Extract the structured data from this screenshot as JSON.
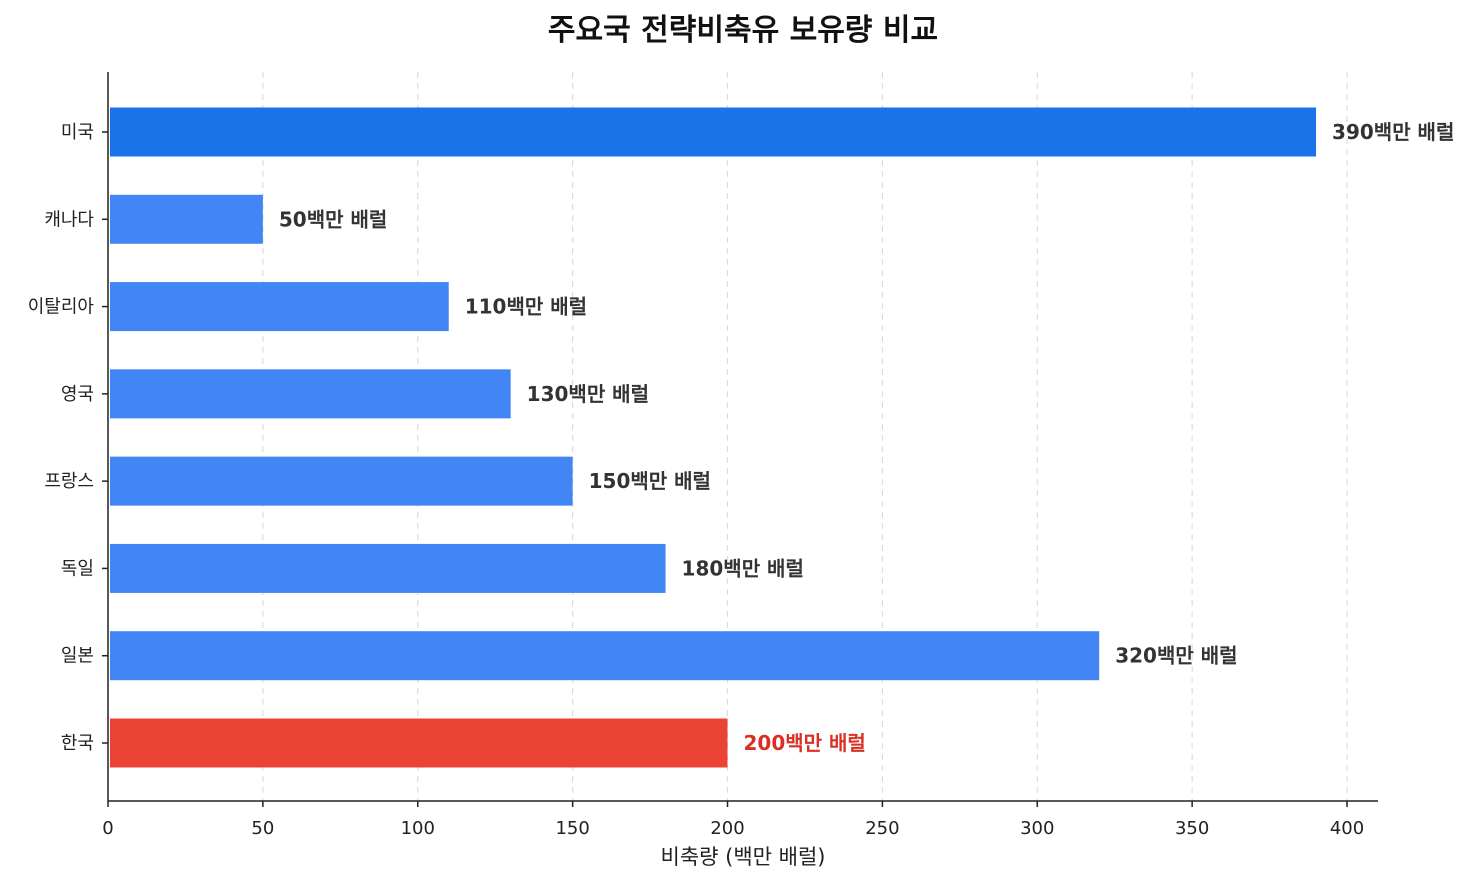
{
  "chart_data": {
    "type": "bar",
    "orientation": "horizontal",
    "title": "주요국 전략비축유 보유량 비교",
    "xlabel": "비축량 (백만 배럴)",
    "ylabel": "",
    "xlim": [
      0,
      410
    ],
    "xticks": [
      0,
      50,
      100,
      150,
      200,
      250,
      300,
      350,
      400
    ],
    "grid": "x-dashed",
    "categories": [
      "미국",
      "캐나다",
      "이탈리아",
      "영국",
      "프랑스",
      "독일",
      "일본",
      "한국"
    ],
    "values": [
      390,
      50,
      110,
      130,
      150,
      180,
      320,
      200
    ],
    "value_labels": [
      "390백만 배럴",
      "50백만 배럴",
      "110백만 배럴",
      "130백만 배럴",
      "150백만 배럴",
      "180백만 배럴",
      "320백만 배럴",
      "200백만 배럴"
    ],
    "colors": {
      "highlight_top": "#1a73e8",
      "default": "#4285f4",
      "highlight_korea": "#ea4335",
      "label_default": "#333333",
      "label_korea": "#d93025"
    },
    "bar_colors": [
      "#1a73e8",
      "#4285f4",
      "#4285f4",
      "#4285f4",
      "#4285f4",
      "#4285f4",
      "#4285f4",
      "#ea4335"
    ],
    "label_colors": [
      "#333333",
      "#333333",
      "#333333",
      "#333333",
      "#333333",
      "#333333",
      "#333333",
      "#d93025"
    ]
  }
}
